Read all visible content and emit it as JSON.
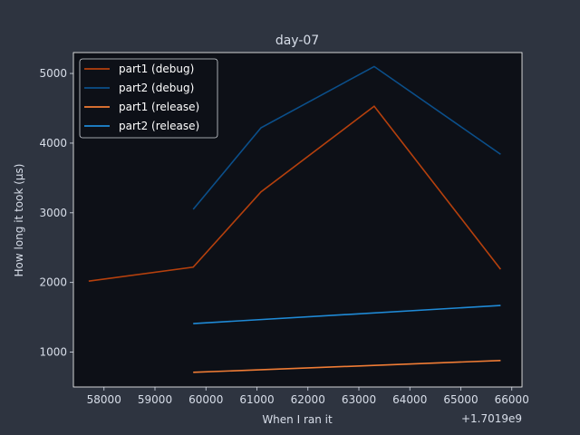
{
  "chart_data": {
    "type": "line",
    "title": "day-07",
    "xlabel": "When I ran it",
    "ylabel": "How long it took (µs)",
    "x_offset_label": "+1.7019e9",
    "xlim": [
      57400,
      66200
    ],
    "ylim": [
      500,
      5300
    ],
    "xticks": [
      58000,
      59000,
      60000,
      61000,
      62000,
      63000,
      64000,
      65000,
      66000
    ],
    "yticks": [
      1000,
      2000,
      3000,
      4000,
      5000
    ],
    "grid": false,
    "legend_position": "upper-left",
    "colors": {
      "background": "#2e3440",
      "plot_area": "#0d1017",
      "axes_text": "#d8dee9"
    },
    "series": [
      {
        "name": "part1 (debug)",
        "color": "#b5400d",
        "x": [
          57700,
          59750,
          61080,
          63300,
          65780
        ],
        "y": [
          2020,
          2220,
          3300,
          4530,
          2190
        ]
      },
      {
        "name": "part2 (debug)",
        "color": "#0b4f8a",
        "x": [
          59750,
          61080,
          63300,
          65780
        ],
        "y": [
          3050,
          4220,
          5100,
          3840
        ]
      },
      {
        "name": "part1 (release)",
        "color": "#f07c35",
        "x": [
          59750,
          65780
        ],
        "y": [
          710,
          880
        ]
      },
      {
        "name": "part2 (release)",
        "color": "#1f8ad6",
        "x": [
          59750,
          65780
        ],
        "y": [
          1410,
          1670
        ]
      }
    ]
  }
}
